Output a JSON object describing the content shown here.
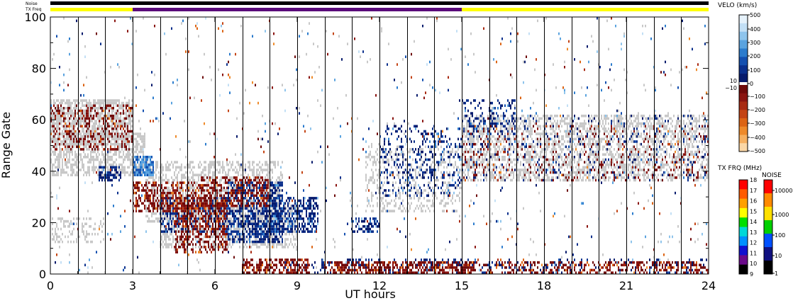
{
  "chart_data": {
    "type": "heatmap",
    "title": "",
    "xlabel": "UT hours",
    "ylabel": "Range Gate",
    "xlim": [
      0,
      24
    ],
    "ylim": [
      0,
      100
    ],
    "x_ticks": [
      "0",
      "3",
      "6",
      "9",
      "12",
      "15",
      "18",
      "21",
      "24"
    ],
    "y_ticks": [
      "0",
      "20",
      "40",
      "60",
      "80",
      "100"
    ],
    "status_bars": {
      "noise_label": "Noise",
      "txfreq_label": "TX Freq",
      "txfreq_segments": [
        {
          "start": 0,
          "end": 3,
          "color": "#ffff00"
        },
        {
          "start": 3,
          "end": 15,
          "color": "#5a0a7a"
        },
        {
          "start": 15,
          "end": 24,
          "color": "#ffff00"
        }
      ]
    },
    "velocity_colorbar": {
      "title": "VELO (km/s)",
      "ticks": [
        "500",
        "400",
        "300",
        "200",
        "100",
        "0",
        "10",
        "−10",
        "−100",
        "−200",
        "−300",
        "−400",
        "−500"
      ],
      "colors_positive": [
        "#e6f2fb",
        "#c2dff5",
        "#8ec4ec",
        "#5aa3df",
        "#2c7ccd",
        "#1450b0",
        "#0a2f8c",
        "#061a6c"
      ],
      "colors_negative": [
        "#6e0a0a",
        "#8a1410",
        "#a82a12",
        "#c44414",
        "#dc6414",
        "#ee8a2a",
        "#f6b060",
        "#fbd7a6"
      ],
      "ground_scatter_color": "#c8c8c8"
    },
    "txfreq_colorbar": {
      "title": "TX FRQ (MHz)",
      "ticks": [
        "18",
        "17",
        "16",
        "15",
        "14",
        "13",
        "12",
        "11",
        "10",
        "9"
      ],
      "colors": [
        "#ff0000",
        "#ff5a00",
        "#ffa000",
        "#ffff00",
        "#00e000",
        "#00d8d8",
        "#0090ff",
        "#1010d0",
        "#6a0a8a",
        "#000000"
      ]
    },
    "noise_colorbar": {
      "title": "NOISE",
      "ticks": [
        "10000",
        "1000",
        "100",
        "10",
        "1"
      ],
      "colors": [
        "#ff0000",
        "#ff8a00",
        "#ffe000",
        "#00d000",
        "#0050ff",
        "#101080",
        "#000000"
      ]
    },
    "regions": [
      {
        "kind": "ground",
        "t0": 0.0,
        "t1": 3.0,
        "r0": 50,
        "r1": 68,
        "density": 0.7
      },
      {
        "kind": "ground",
        "t0": 0.0,
        "t1": 3.5,
        "r0": 38,
        "r1": 55,
        "density": 0.55
      },
      {
        "kind": "ground",
        "t0": 3.5,
        "t1": 8.5,
        "r0": 20,
        "r1": 44,
        "density": 0.45
      },
      {
        "kind": "ground",
        "t0": 4.0,
        "t1": 9.0,
        "r0": 10,
        "r1": 28,
        "density": 0.5
      },
      {
        "kind": "ground",
        "t0": 15.0,
        "t1": 24.0,
        "r0": 36,
        "r1": 62,
        "density": 0.45
      },
      {
        "kind": "ground",
        "t0": 11.5,
        "t1": 15.0,
        "r0": 24,
        "r1": 50,
        "density": 0.25
      },
      {
        "kind": "ground",
        "t0": 0.0,
        "t1": 2.0,
        "r0": 12,
        "r1": 22,
        "density": 0.25
      },
      {
        "kind": "neg",
        "t0": 0.0,
        "t1": 3.0,
        "r0": 48,
        "r1": 66,
        "density": 0.3
      },
      {
        "kind": "neg",
        "t0": 3.0,
        "t1": 5.5,
        "r0": 24,
        "r1": 36,
        "density": 0.5
      },
      {
        "kind": "neg",
        "t0": 4.5,
        "t1": 6.5,
        "r0": 8,
        "r1": 30,
        "density": 0.45
      },
      {
        "kind": "neg",
        "t0": 5.5,
        "t1": 8.0,
        "r0": 26,
        "r1": 38,
        "density": 0.45
      },
      {
        "kind": "neg",
        "t0": 7.0,
        "t1": 9.5,
        "r0": 0,
        "r1": 6,
        "density": 0.55
      },
      {
        "kind": "neg",
        "t0": 10.0,
        "t1": 15.5,
        "r0": 0,
        "r1": 5,
        "density": 0.55
      },
      {
        "kind": "neg",
        "t0": 15.0,
        "t1": 24.0,
        "r0": 0,
        "r1": 5,
        "density": 0.35
      },
      {
        "kind": "neg",
        "t0": 15.0,
        "t1": 24.0,
        "r0": 36,
        "r1": 58,
        "density": 0.08
      },
      {
        "kind": "pos",
        "t0": 6.5,
        "t1": 8.5,
        "r0": 12,
        "r1": 36,
        "density": 0.55
      },
      {
        "kind": "pos",
        "t0": 8.0,
        "t1": 9.8,
        "r0": 16,
        "r1": 30,
        "density": 0.5
      },
      {
        "kind": "pos",
        "t0": 4.0,
        "t1": 6.5,
        "r0": 16,
        "r1": 30,
        "density": 0.35
      },
      {
        "kind": "pos",
        "t0": 3.0,
        "t1": 3.8,
        "r0": 38,
        "r1": 46,
        "density": 0.75,
        "light": true
      },
      {
        "kind": "pos",
        "t0": 1.8,
        "t1": 2.6,
        "r0": 36,
        "r1": 42,
        "density": 0.6
      },
      {
        "kind": "pos",
        "t0": 11.0,
        "t1": 12.0,
        "r0": 16,
        "r1": 22,
        "density": 0.55
      },
      {
        "kind": "pos",
        "t0": 12.0,
        "t1": 15.0,
        "r0": 30,
        "r1": 58,
        "density": 0.2
      },
      {
        "kind": "pos",
        "t0": 8.5,
        "t1": 15.0,
        "r0": 0,
        "r1": 6,
        "density": 0.2
      },
      {
        "kind": "pos",
        "t0": 15.0,
        "t1": 24.0,
        "r0": 0,
        "r1": 6,
        "density": 0.15
      },
      {
        "kind": "pos",
        "t0": 15.0,
        "t1": 24.0,
        "r0": 36,
        "r1": 62,
        "density": 0.07
      },
      {
        "kind": "pos",
        "t0": 15.0,
        "t1": 17.0,
        "r0": 54,
        "r1": 68,
        "density": 0.25
      }
    ]
  }
}
